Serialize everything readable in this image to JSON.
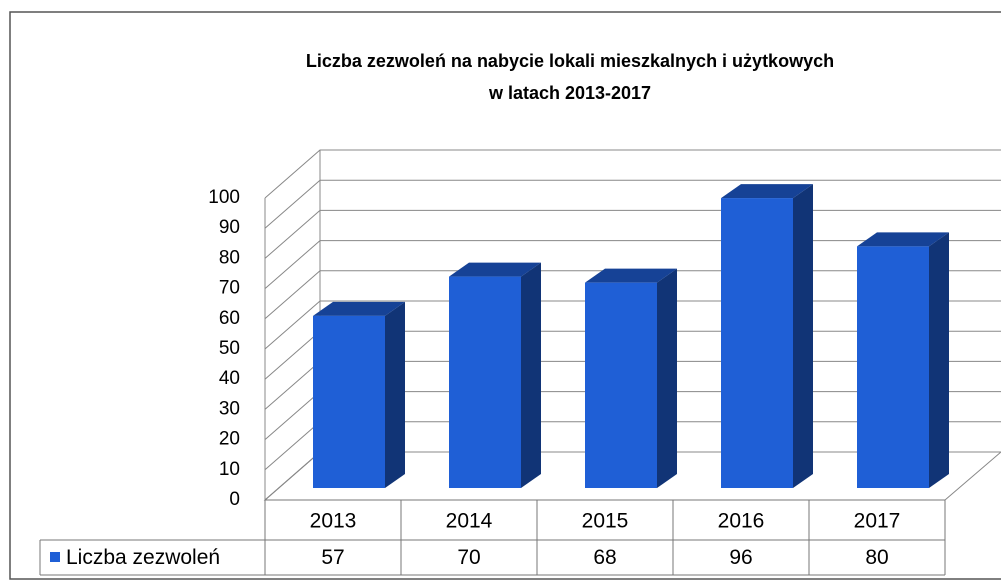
{
  "chart_data": {
    "type": "bar3d",
    "title": [
      "Liczba zezwoleń na nabycie lokali mieszkalnych i użytkowych",
      "w latach 2013-2017"
    ],
    "categories": [
      "2013",
      "2014",
      "2015",
      "2016",
      "2017"
    ],
    "series": [
      {
        "name": "Liczba zezwoleń",
        "color": "#1f5fd6",
        "values": [
          57,
          70,
          68,
          96,
          80
        ]
      }
    ],
    "ylim": [
      0,
      100
    ],
    "yticks": [
      0,
      10,
      20,
      30,
      40,
      50,
      60,
      70,
      80,
      90,
      100
    ],
    "grid": true,
    "data_table": true
  }
}
